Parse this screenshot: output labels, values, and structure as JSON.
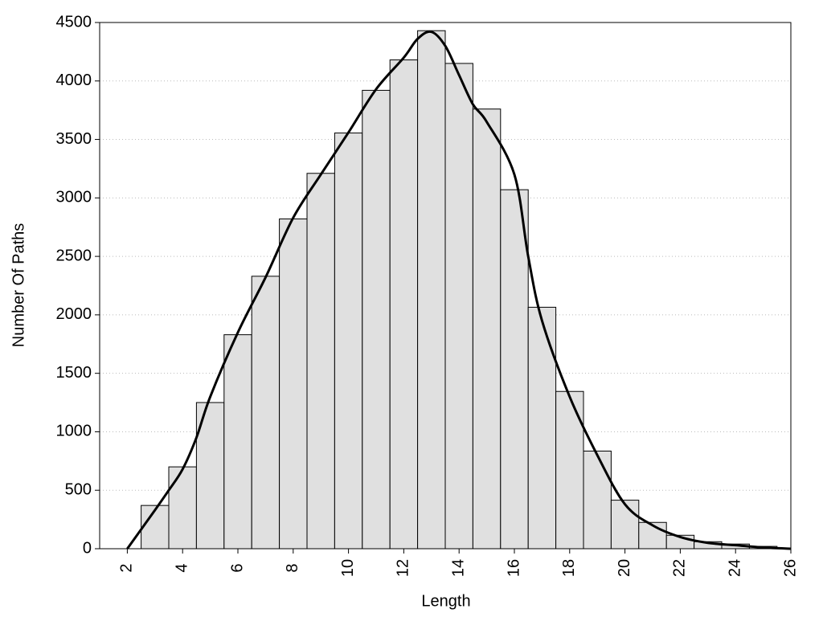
{
  "chart_data": {
    "type": "histogram",
    "xlabel": "Length",
    "ylabel": "Number Of Paths",
    "bins": [
      2.5,
      3.5,
      4.5,
      5.5,
      6.5,
      7.5,
      8.5,
      9.5,
      10.5,
      11.5,
      12.5,
      13.5,
      14.5,
      15.5,
      16.5,
      17.5,
      18.5,
      19.5,
      20.5,
      21.5,
      22.5,
      23.5,
      24.5,
      25.5
    ],
    "values": [
      370,
      700,
      1250,
      1830,
      2330,
      2820,
      3210,
      3555,
      3920,
      4180,
      4430,
      4150,
      3760,
      3070,
      2065,
      1345,
      835,
      415,
      225,
      115,
      60,
      40,
      20
    ],
    "color": "#e0e0e0",
    "curve": {
      "color": "#000000",
      "x": [
        2,
        3,
        3.5,
        4,
        4.5,
        5,
        6,
        7,
        8,
        9,
        10,
        11,
        12,
        12.5,
        13,
        13.5,
        14,
        14.5,
        15,
        16,
        16.5,
        17,
        18,
        19,
        20,
        21,
        22,
        23,
        24,
        25,
        26
      ],
      "values": [
        0,
        330,
        500,
        680,
        950,
        1300,
        1850,
        2320,
        2830,
        3200,
        3560,
        3930,
        4200,
        4360,
        4420,
        4300,
        4050,
        3800,
        3650,
        3200,
        2500,
        1950,
        1300,
        800,
        380,
        200,
        100,
        50,
        30,
        10,
        0
      ]
    },
    "xlim": [
      1,
      26
    ],
    "ylim": [
      0,
      4500
    ],
    "xticks": [
      2,
      4,
      6,
      8,
      10,
      12,
      14,
      16,
      18,
      20,
      22,
      24,
      26
    ],
    "yticks": [
      0,
      500,
      1000,
      1500,
      2000,
      2500,
      3000,
      3500,
      4000,
      4500
    ],
    "grid": true
  }
}
